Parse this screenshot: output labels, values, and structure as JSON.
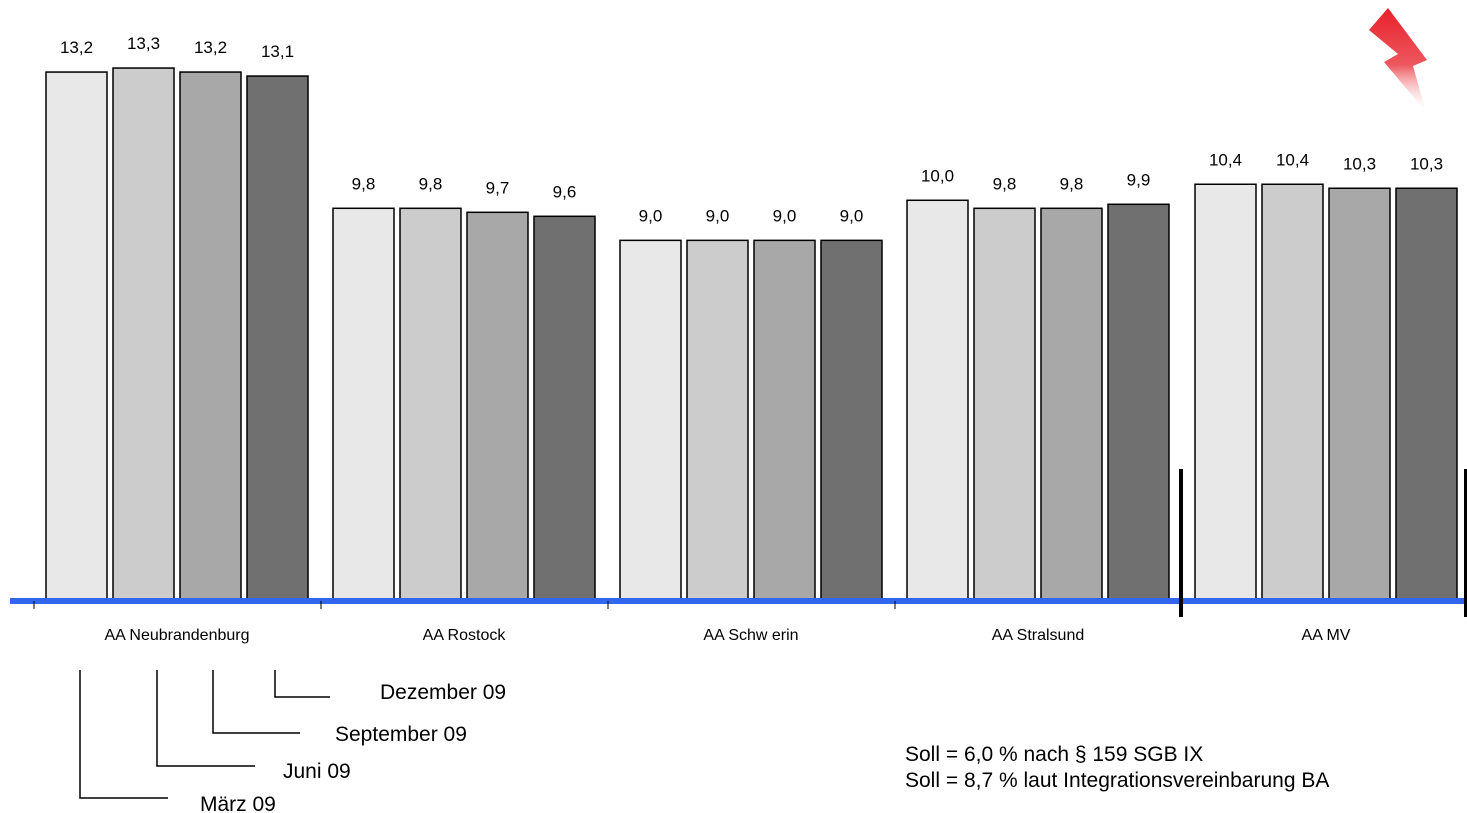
{
  "chart_data": {
    "type": "bar",
    "categories": [
      "AA Neubrandenburg",
      "AA Rostock",
      "AA Schw erin",
      "AA Stralsund",
      "AA MV"
    ],
    "series": [
      {
        "name": "März  09",
        "color": "#E8E8E8",
        "values": [
          13.2,
          9.8,
          9.0,
          10.0,
          10.4
        ],
        "labels": [
          "13,2",
          "9,8",
          "9,0",
          "10,0",
          "10,4"
        ]
      },
      {
        "name": "Juni 09",
        "color": "#CCCCCC",
        "values": [
          13.3,
          9.8,
          9.0,
          9.8,
          10.4
        ],
        "labels": [
          "13,3",
          "9,8",
          "9,0",
          "9,8",
          "10,4"
        ]
      },
      {
        "name": "September 09",
        "color": "#A8A8A8",
        "values": [
          13.2,
          9.7,
          9.0,
          9.8,
          10.3
        ],
        "labels": [
          "13,2",
          "9,7",
          "9,0",
          "9,8",
          "10,3"
        ]
      },
      {
        "name": "Dezember 09",
        "color": "#707070",
        "values": [
          13.1,
          9.6,
          9.0,
          9.9,
          10.3
        ],
        "labels": [
          "13,1",
          "9,6",
          "9,0",
          "9,9",
          "10,3"
        ]
      }
    ],
    "ylim": [
      0,
      13.9
    ],
    "axis_color": "#3366EE",
    "accent_color": "#E8202A",
    "grid": false,
    "legend_placement": "bottom-left (bracket leader lines)"
  },
  "notes": [
    "Soll = 6,0 % nach § 159 SGB IX",
    "Soll = 8,7 % laut Integrationsvereinbarung BA"
  ]
}
